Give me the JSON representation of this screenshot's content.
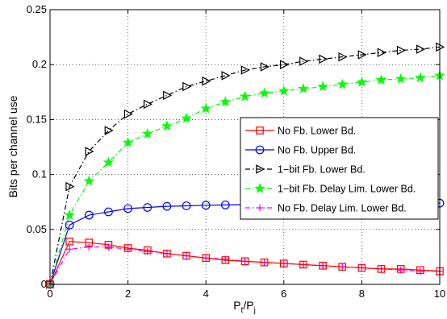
{
  "chart_data": {
    "type": "line",
    "xlabel": "P",
    "xlabel_sub_t": "t",
    "xlabel_mid": "/P",
    "xlabel_sub_j": "j",
    "ylabel": "Bits per channel use",
    "xlim": [
      0,
      10
    ],
    "ylim": [
      0,
      0.25
    ],
    "x_ticks": [
      0,
      2,
      4,
      6,
      8,
      10
    ],
    "y_ticks": [
      0,
      0.05,
      0.1,
      0.15,
      0.2,
      0.25
    ],
    "x_tick_labels": [
      "0",
      "2",
      "4",
      "6",
      "8",
      "10"
    ],
    "y_tick_labels": [
      "0",
      "0.05",
      "0.1",
      "0.15",
      "0.2",
      "0.25"
    ],
    "grid": "dotted",
    "legend_position": "center-right",
    "x": [
      0,
      0.5,
      1,
      1.5,
      2,
      2.5,
      3,
      3.5,
      4,
      4.5,
      5,
      5.5,
      6,
      6.5,
      7,
      7.5,
      8,
      8.5,
      9,
      9.5,
      10
    ],
    "series": [
      {
        "name": "No Fb. Lower Bd.",
        "color": "#ff0000",
        "line_style": "solid",
        "marker": "square",
        "values": [
          0,
          0.039,
          0.038,
          0.036,
          0.033,
          0.031,
          0.028,
          0.026,
          0.024,
          0.022,
          0.021,
          0.02,
          0.019,
          0.018,
          0.017,
          0.016,
          0.015,
          0.014,
          0.014,
          0.013,
          0.012
        ]
      },
      {
        "name": "No Fb. Upper Bd.",
        "color": "#0000ff",
        "line_style": "solid",
        "marker": "circle",
        "values": [
          0,
          0.054,
          0.063,
          0.066,
          0.069,
          0.07,
          0.071,
          0.0715,
          0.072,
          0.0723,
          0.0726,
          0.0728,
          0.073,
          0.0732,
          0.0733,
          0.0734,
          0.0735,
          0.0736,
          0.0737,
          0.0738,
          0.0739
        ]
      },
      {
        "name": "1−bit Fb. Lower Bd.",
        "color": "#000000",
        "line_style": "dashdot",
        "marker": "triangle-right",
        "values": [
          0,
          0.089,
          0.121,
          0.14,
          0.155,
          0.164,
          0.172,
          0.18,
          0.185,
          0.19,
          0.195,
          0.198,
          0.2,
          0.203,
          0.205,
          0.207,
          0.209,
          0.211,
          0.213,
          0.214,
          0.216
        ]
      },
      {
        "name": "1−bit Fb. Delay Lim. Lower Bd.",
        "color": "#00ff00",
        "line_style": "dashdot",
        "marker": "star",
        "values": [
          0,
          0.063,
          0.094,
          0.111,
          0.129,
          0.137,
          0.144,
          0.151,
          0.16,
          0.166,
          0.171,
          0.174,
          0.176,
          0.178,
          0.18,
          0.182,
          0.184,
          0.186,
          0.187,
          0.188,
          0.19
        ]
      },
      {
        "name": "No Fb. Delay Lim. Lower Bd.",
        "color": "#ff00ff",
        "line_style": "dashdot",
        "marker": "plus",
        "values": [
          0,
          0.032,
          0.034,
          0.034,
          0.032,
          0.03,
          0.028,
          0.026,
          0.024,
          0.023,
          0.021,
          0.02,
          0.019,
          0.018,
          0.017,
          0.016,
          0.015,
          0.014,
          0.013,
          0.012,
          0.012
        ]
      }
    ]
  }
}
